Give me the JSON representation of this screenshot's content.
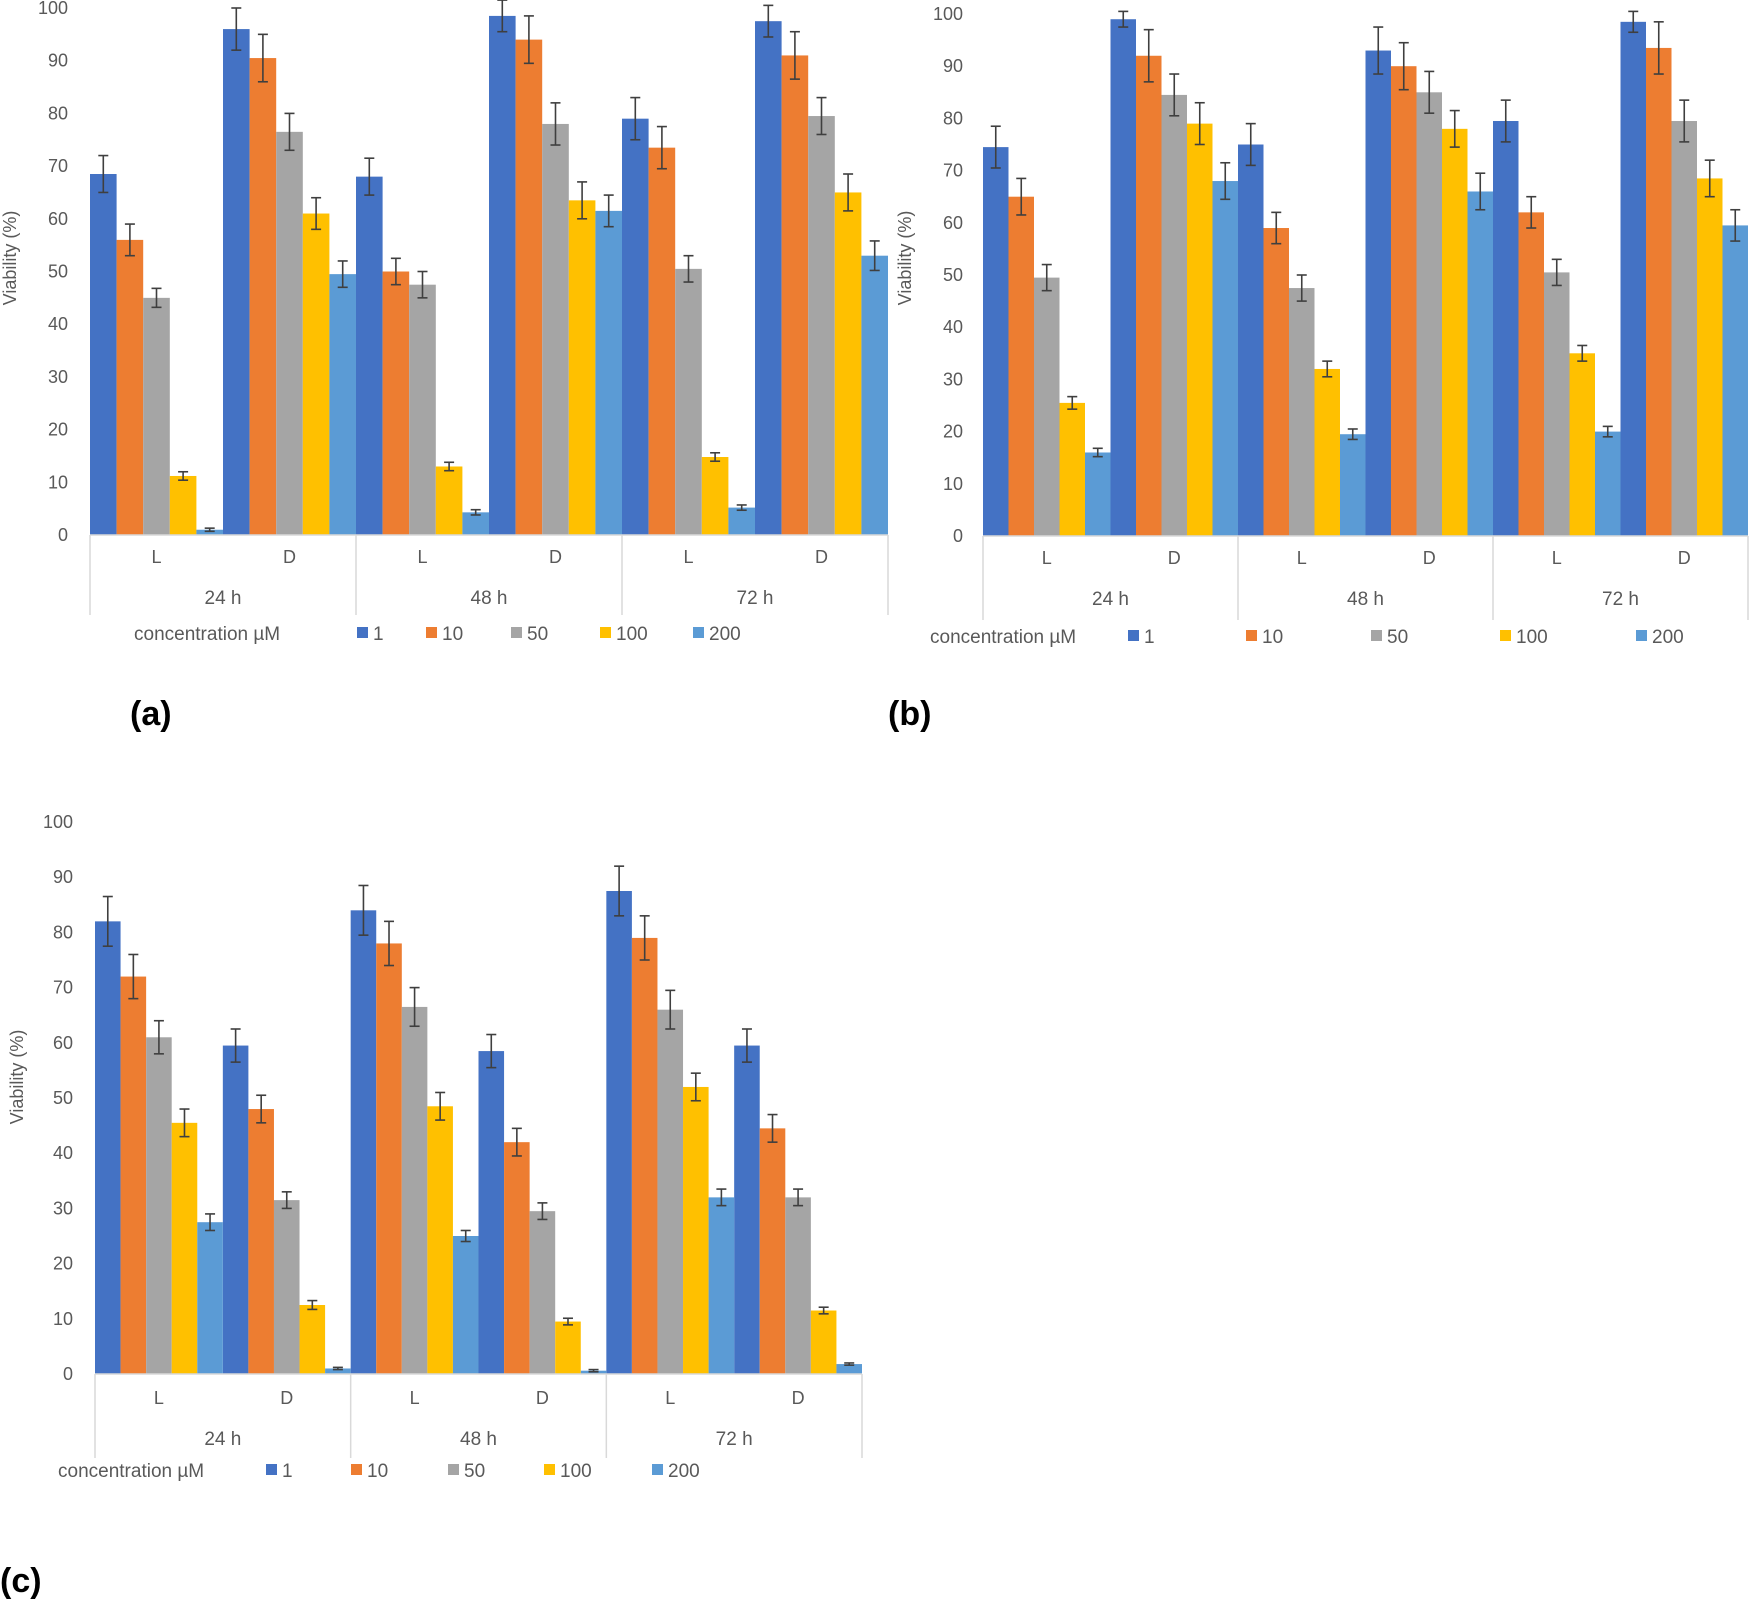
{
  "colors": {
    "series": [
      "#4472C4",
      "#ED7D31",
      "#A5A5A5",
      "#FFC000",
      "#5B9BD5"
    ],
    "axis": "#D9D9D9",
    "text": "#595959",
    "error_bar": "#3F3F3F"
  },
  "chart_data": [
    {
      "panel_label": "(a)",
      "type": "bar",
      "ylabel": "Viability (%)",
      "ylim": [
        0,
        100
      ],
      "yticks": [
        "0",
        "10",
        "20",
        "30",
        "40",
        "50",
        "60",
        "70",
        "80",
        "90",
        "100"
      ],
      "grid": false,
      "categories": [
        "L",
        "D",
        "L",
        "D",
        "L",
        "D"
      ],
      "groups": [
        "24 h",
        "48 h",
        "72 h"
      ],
      "legend": {
        "title": "concentration µM",
        "position": "bottom"
      },
      "series": [
        {
          "name": "1",
          "values": [
            68.5,
            96.0,
            68.0,
            98.5,
            79.0,
            97.5
          ],
          "errors": [
            3.5,
            4.0,
            3.5,
            3.0,
            4.0,
            3.0
          ]
        },
        {
          "name": "10",
          "values": [
            56.0,
            90.5,
            50.0,
            94.0,
            73.5,
            91.0
          ],
          "errors": [
            3.0,
            4.5,
            2.5,
            4.5,
            4.0,
            4.5
          ]
        },
        {
          "name": "50",
          "values": [
            45.0,
            76.5,
            47.5,
            78.0,
            50.5,
            79.5
          ],
          "errors": [
            1.8,
            3.5,
            2.5,
            4.0,
            2.5,
            3.5
          ]
        },
        {
          "name": "100",
          "values": [
            11.2,
            61.0,
            13.0,
            63.5,
            14.8,
            65.0
          ],
          "errors": [
            0.8,
            3.0,
            0.8,
            3.5,
            0.8,
            3.5
          ]
        },
        {
          "name": "200",
          "values": [
            1.0,
            49.5,
            4.3,
            61.5,
            5.2,
            53.0
          ],
          "errors": [
            0.3,
            2.5,
            0.5,
            3.0,
            0.5,
            2.8
          ]
        }
      ]
    },
    {
      "panel_label": "(b)",
      "type": "bar",
      "ylabel": "Viability (%)",
      "ylim": [
        0,
        100
      ],
      "yticks": [
        "0",
        "10",
        "20",
        "30",
        "40",
        "50",
        "60",
        "70",
        "80",
        "90",
        "100"
      ],
      "grid": false,
      "categories": [
        "L",
        "D",
        "L",
        "D",
        "L",
        "D"
      ],
      "groups": [
        "24 h",
        "48 h",
        "72 h"
      ],
      "legend": {
        "title": "concentration µM",
        "position": "bottom"
      },
      "series": [
        {
          "name": "1",
          "values": [
            74.5,
            99.0,
            75.0,
            93.0,
            79.5,
            98.5
          ],
          "errors": [
            4.0,
            1.5,
            4.0,
            4.5,
            4.0,
            2.0
          ]
        },
        {
          "name": "10",
          "values": [
            65.0,
            92.0,
            59.0,
            90.0,
            62.0,
            93.5
          ],
          "errors": [
            3.5,
            5.0,
            3.0,
            4.5,
            3.0,
            5.0
          ]
        },
        {
          "name": "50",
          "values": [
            49.5,
            84.5,
            47.5,
            85.0,
            50.5,
            79.5
          ],
          "errors": [
            2.5,
            4.0,
            2.5,
            4.0,
            2.5,
            4.0
          ]
        },
        {
          "name": "100",
          "values": [
            25.5,
            79.0,
            32.0,
            78.0,
            35.0,
            68.5
          ],
          "errors": [
            1.2,
            4.0,
            1.5,
            3.5,
            1.5,
            3.5
          ]
        },
        {
          "name": "200",
          "values": [
            16.0,
            68.0,
            19.5,
            66.0,
            20.0,
            59.5
          ],
          "errors": [
            0.8,
            3.5,
            1.0,
            3.5,
            1.0,
            3.0
          ]
        }
      ]
    },
    {
      "panel_label": "(c)",
      "type": "bar",
      "ylabel": "Viability (%)",
      "ylim": [
        0,
        100
      ],
      "yticks": [
        "0",
        "10",
        "20",
        "30",
        "40",
        "50",
        "60",
        "70",
        "80",
        "90",
        "100"
      ],
      "grid": false,
      "categories": [
        "L",
        "D",
        "L",
        "D",
        "L",
        "D"
      ],
      "groups": [
        "24 h",
        "48 h",
        "72 h"
      ],
      "legend": {
        "title": "concentration µM",
        "position": "bottom"
      },
      "series": [
        {
          "name": "1",
          "values": [
            82.0,
            59.5,
            84.0,
            58.5,
            87.5,
            59.5
          ],
          "errors": [
            4.5,
            3.0,
            4.5,
            3.0,
            4.5,
            3.0
          ]
        },
        {
          "name": "10",
          "values": [
            72.0,
            48.0,
            78.0,
            42.0,
            79.0,
            44.5
          ],
          "errors": [
            4.0,
            2.5,
            4.0,
            2.5,
            4.0,
            2.5
          ]
        },
        {
          "name": "50",
          "values": [
            61.0,
            31.5,
            66.5,
            29.5,
            66.0,
            32.0
          ],
          "errors": [
            3.0,
            1.5,
            3.5,
            1.5,
            3.5,
            1.5
          ]
        },
        {
          "name": "100",
          "values": [
            45.5,
            12.5,
            48.5,
            9.5,
            52.0,
            11.5
          ],
          "errors": [
            2.5,
            0.8,
            2.5,
            0.6,
            2.5,
            0.6
          ]
        },
        {
          "name": "200",
          "values": [
            27.5,
            1.0,
            25.0,
            0.6,
            32.0,
            1.8
          ],
          "errors": [
            1.5,
            0.2,
            1.0,
            0.2,
            1.5,
            0.2
          ]
        }
      ]
    }
  ]
}
